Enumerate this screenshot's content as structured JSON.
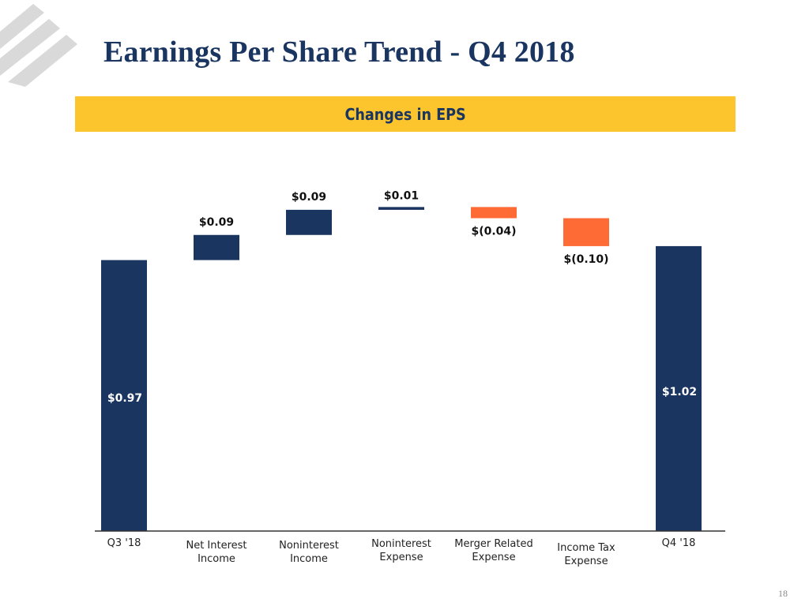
{
  "slide": {
    "title": "Earnings Per Share Trend - Q4 2018",
    "banner": "Changes in EPS",
    "page_number": "18"
  },
  "colors": {
    "navy": "#1a3560",
    "orange": "#ff6b35",
    "banner": "#fcc52d",
    "logo": "#d9d9d9"
  },
  "chart_data": {
    "type": "waterfall",
    "title": "Changes in EPS",
    "xlabel": "",
    "ylabel": "",
    "ylim": [
      0,
      1.25
    ],
    "categories": [
      "Q3 '18",
      "Net Interest Income",
      "Noninterest Income",
      "Noninterest Expense",
      "Merger Related Expense",
      "Income Tax Expense",
      "Q4 '18"
    ],
    "steps": [
      {
        "category": "Q3 '18",
        "kind": "total",
        "value": 0.97,
        "label": "$0.97",
        "color": "navy"
      },
      {
        "category": "Net Interest Income",
        "kind": "delta",
        "value": 0.09,
        "label": "$0.09",
        "color": "navy"
      },
      {
        "category": "Noninterest Income",
        "kind": "delta",
        "value": 0.09,
        "label": "$0.09",
        "color": "navy"
      },
      {
        "category": "Noninterest Expense",
        "kind": "delta",
        "value": 0.01,
        "label": "$0.01",
        "color": "navy"
      },
      {
        "category": "Merger Related Expense",
        "kind": "delta",
        "value": -0.04,
        "label": "$(0.04)",
        "color": "orange"
      },
      {
        "category": "Income Tax Expense",
        "kind": "delta",
        "value": -0.1,
        "label": "$(0.10)",
        "color": "orange"
      },
      {
        "category": "Q4 '18",
        "kind": "total",
        "value": 1.02,
        "label": "$1.02",
        "color": "navy"
      }
    ],
    "category_label_lines": [
      [
        "Q3 '18"
      ],
      [
        "Net Interest",
        "Income"
      ],
      [
        "Noninterest",
        "Income"
      ],
      [
        "Noninterest",
        "Expense"
      ],
      [
        "Merger Related",
        "Expense"
      ],
      [
        "Income Tax",
        "Expense"
      ],
      [
        "Q4 '18"
      ]
    ]
  }
}
